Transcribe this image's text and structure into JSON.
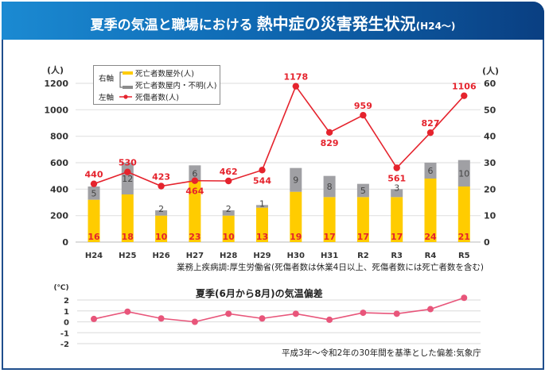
{
  "header": {
    "title_part1": "夏季の気温と職場における",
    "title_part2": "熱中症の災害発生状況",
    "title_part3": "(H24〜)"
  },
  "legend": {
    "right_axis_label": "右軸",
    "left_axis_label": "左軸",
    "items": [
      {
        "label": "死亡者数屋外(人)",
        "color": "#ffcc00"
      },
      {
        "label": "死亡者数屋内・不明(人)",
        "color": "#8c8c8c"
      },
      {
        "label": "死傷者数(人)",
        "color": "#e5232d"
      }
    ]
  },
  "source_note": "業務上疾病調:厚生労働省(死傷者数は休業4日以上、死傷者数には死亡者数を含む)",
  "temp_subtitle": "夏季(6月から8月)の気温偏差",
  "temp_source_note": "平成3年〜令和2年の30年間を基準とした偏差:気象庁",
  "chart_data": [
    {
      "type": "bar",
      "title": "熱中症の災害発生状況",
      "categories": [
        "H24",
        "H25",
        "H26",
        "H27",
        "H28",
        "H29",
        "H30",
        "H31",
        "R2",
        "R3",
        "R4",
        "R5"
      ],
      "left_axis": {
        "label": "(人)",
        "range": [
          0,
          1200
        ],
        "ticks": [
          0,
          200,
          400,
          600,
          800,
          1000,
          1200
        ]
      },
      "right_axis": {
        "label": "(人)",
        "range": [
          0,
          60
        ],
        "ticks": [
          0,
          10,
          20,
          30,
          40,
          50,
          60
        ]
      },
      "grid": true,
      "legend_position": "top-left",
      "series": [
        {
          "name": "死亡者数屋外(人)",
          "type": "stacked-bar",
          "axis": "right",
          "color": "#ffcc00",
          "label_color": "#e5232d",
          "values": [
            16,
            18,
            10,
            23,
            10,
            13,
            19,
            17,
            17,
            17,
            24,
            21
          ]
        },
        {
          "name": "死亡者数屋内・不明(人)",
          "type": "stacked-bar",
          "axis": "right",
          "color": "#a0a0a4",
          "label_color": "#555555",
          "values": [
            5,
            12,
            2,
            6,
            2,
            1,
            9,
            8,
            5,
            3,
            6,
            10
          ]
        },
        {
          "name": "死傷者数(人)",
          "type": "line",
          "axis": "left",
          "color": "#e5232d",
          "values": [
            440,
            530,
            423,
            464,
            462,
            544,
            1178,
            829,
            959,
            561,
            827,
            1106
          ]
        }
      ]
    },
    {
      "type": "line",
      "title": "夏季(6月から8月)の気温偏差",
      "categories": [
        "H24",
        "H25",
        "H26",
        "H27",
        "H28",
        "H29",
        "H30",
        "H31",
        "R2",
        "R3",
        "R4",
        "R5"
      ],
      "ylabel": "(℃)",
      "ylim": [
        -2,
        2
      ],
      "yticks": [
        2,
        1,
        0,
        -1,
        -2
      ],
      "grid": true,
      "series": [
        {
          "name": "気温偏差",
          "color": "#e8557a",
          "values": [
            0.26,
            0.93,
            0.31,
            0.0,
            0.74,
            0.31,
            0.74,
            0.19,
            0.83,
            0.74,
            1.16,
            2.2
          ]
        }
      ]
    }
  ]
}
